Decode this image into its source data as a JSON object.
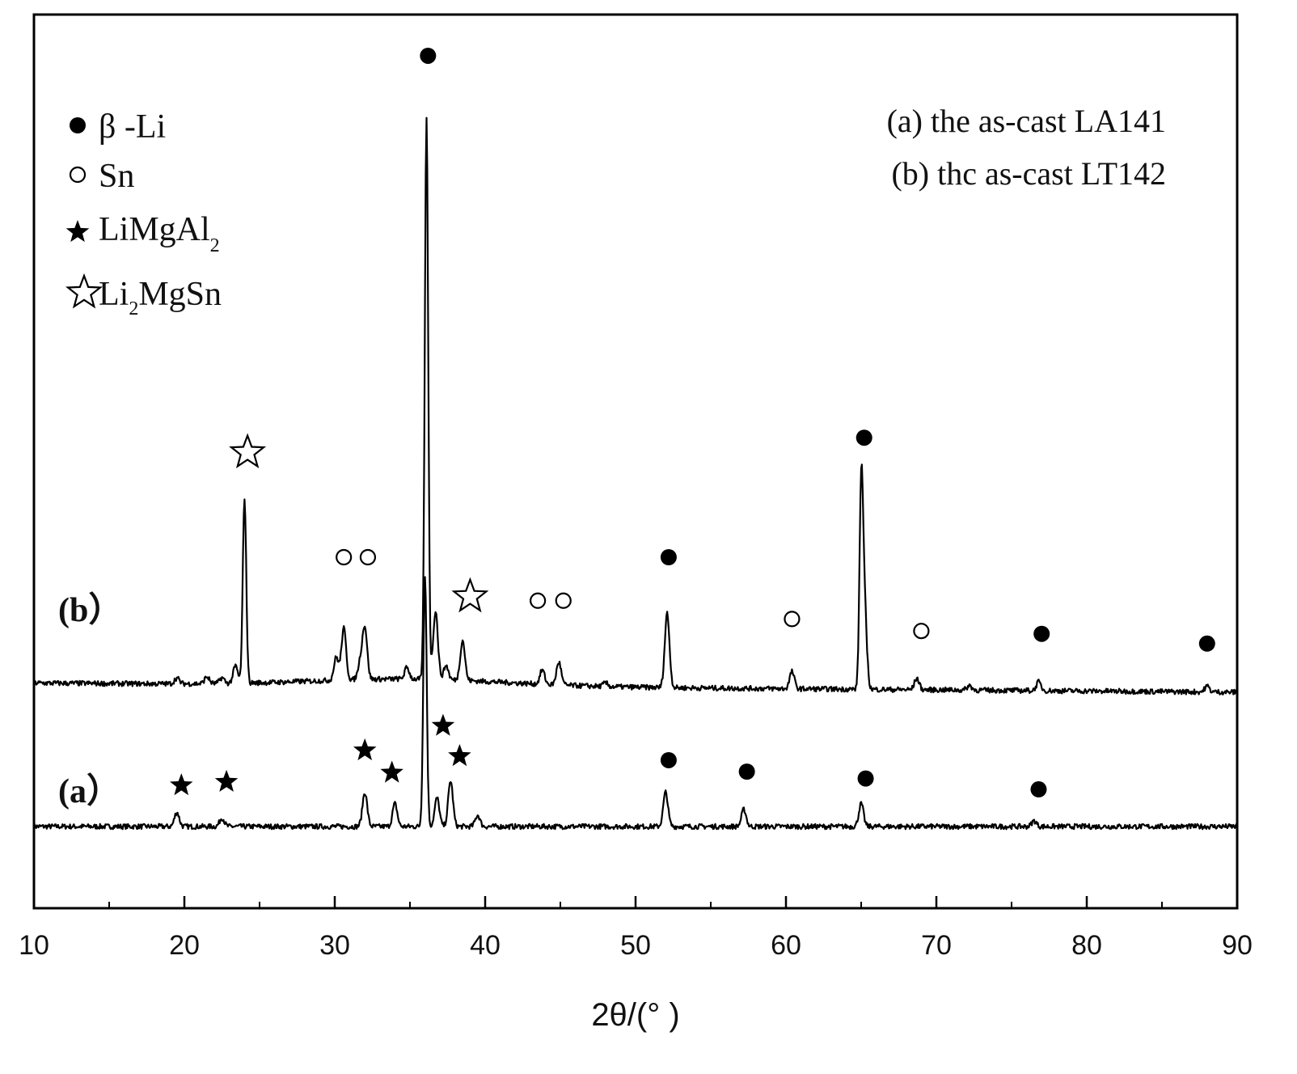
{
  "chart_data": {
    "type": "line",
    "xlabel": "2θ/(°  )",
    "ylabel": "",
    "xlim": [
      10,
      90
    ],
    "x_ticks": [
      10,
      20,
      30,
      40,
      50,
      60,
      70,
      80,
      90
    ],
    "x_tick_labels": [
      "10",
      "20",
      "30",
      "40",
      "50",
      "60",
      "70",
      "80",
      "90"
    ],
    "grid": false,
    "legend": {
      "placement": "top-left",
      "entries": [
        {
          "marker": "filled-circle",
          "text": "β  -Li",
          "sub": "",
          "rest": ""
        },
        {
          "marker": "open-circle",
          "text": "Sn",
          "sub": "",
          "rest": ""
        },
        {
          "marker": "filled-star",
          "text": "LiMgAl",
          "sub": "2",
          "rest": ""
        },
        {
          "marker": "open-star",
          "text": "Li",
          "sub": "2",
          "rest": "MgSn"
        }
      ]
    },
    "sample_legend": {
      "placement": "top-right",
      "lines": [
        "(a) the as-cast LA141",
        "(b) thc as-cast LT142"
      ]
    },
    "series": [
      {
        "name": "(a)",
        "label_text": "(a）",
        "baseline": 0.0,
        "peaks": [
          [
            19.5,
            0.25
          ],
          [
            22.5,
            0.15
          ],
          [
            32.0,
            0.6
          ],
          [
            34.0,
            0.4
          ],
          [
            36.0,
            4.4
          ],
          [
            36.8,
            0.5
          ],
          [
            37.7,
            0.8
          ],
          [
            39.5,
            0.2
          ],
          [
            52.0,
            0.6
          ],
          [
            57.2,
            0.3
          ],
          [
            65.0,
            0.4
          ],
          [
            76.5,
            0.1
          ]
        ],
        "markers": [
          {
            "x": 19.8,
            "y": 0.72,
            "type": "filled-star"
          },
          {
            "x": 22.8,
            "y": 0.78,
            "type": "filled-star"
          },
          {
            "x": 32.0,
            "y": 1.33,
            "type": "filled-star"
          },
          {
            "x": 33.8,
            "y": 0.94,
            "type": "filled-star"
          },
          {
            "x": 37.2,
            "y": 1.76,
            "type": "filled-star"
          },
          {
            "x": 38.3,
            "y": 1.23,
            "type": "filled-star"
          },
          {
            "x": 52.2,
            "y": 1.16,
            "type": "filled-circle"
          },
          {
            "x": 57.4,
            "y": 0.96,
            "type": "filled-circle"
          },
          {
            "x": 65.3,
            "y": 0.84,
            "type": "filled-circle"
          },
          {
            "x": 76.8,
            "y": 0.65,
            "type": "filled-circle"
          }
        ]
      },
      {
        "name": "(b)",
        "label_text": "(b）",
        "baseline": 2.45,
        "peaks": [
          [
            19.5,
            0.1
          ],
          [
            21.5,
            0.12
          ],
          [
            22.5,
            0.1
          ],
          [
            23.4,
            0.3
          ],
          [
            24.0,
            3.25
          ],
          [
            30.1,
            0.4
          ],
          [
            30.6,
            0.9
          ],
          [
            31.7,
            0.3
          ],
          [
            32.0,
            0.9
          ],
          [
            34.8,
            0.2
          ],
          [
            36.1,
            9.8
          ],
          [
            36.7,
            1.2
          ],
          [
            37.4,
            0.25
          ],
          [
            38.5,
            0.7
          ],
          [
            43.8,
            0.25
          ],
          [
            44.9,
            0.4
          ],
          [
            48.0,
            0.06
          ],
          [
            52.1,
            1.3
          ],
          [
            60.4,
            0.3
          ],
          [
            65.0,
            3.2
          ],
          [
            65.2,
            1.6
          ],
          [
            68.7,
            0.2
          ],
          [
            72.2,
            0.08
          ],
          [
            76.8,
            0.15
          ],
          [
            88.0,
            0.1
          ]
        ],
        "markers": [
          {
            "x": 24.2,
            "y": 6.54,
            "type": "open-star"
          },
          {
            "x": 30.6,
            "y": 4.71,
            "type": "open-circle"
          },
          {
            "x": 32.2,
            "y": 4.71,
            "type": "open-circle"
          },
          {
            "x": 36.2,
            "y": 13.48,
            "type": "filled-circle"
          },
          {
            "x": 52.2,
            "y": 4.71,
            "type": "filled-circle"
          },
          {
            "x": 39.0,
            "y": 4.02,
            "type": "open-star"
          },
          {
            "x": 43.5,
            "y": 3.95,
            "type": "open-circle"
          },
          {
            "x": 45.2,
            "y": 3.95,
            "type": "open-circle"
          },
          {
            "x": 60.4,
            "y": 3.63,
            "type": "open-circle"
          },
          {
            "x": 65.2,
            "y": 6.8,
            "type": "filled-circle"
          },
          {
            "x": 69.0,
            "y": 3.42,
            "type": "open-circle"
          },
          {
            "x": 77.0,
            "y": 3.37,
            "type": "filled-circle"
          },
          {
            "x": 88.0,
            "y": 3.2,
            "type": "filled-circle"
          }
        ]
      }
    ]
  }
}
